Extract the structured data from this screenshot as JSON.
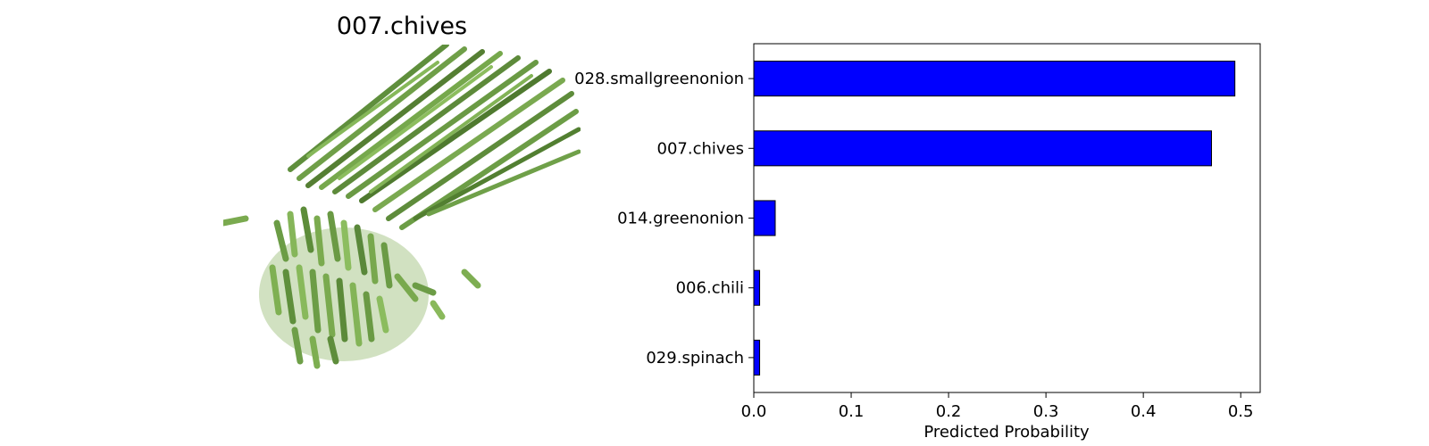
{
  "image_panel": {
    "title": "007.chives",
    "photo_icon": "chopped-chives-photo"
  },
  "chart_data": {
    "type": "bar",
    "orientation": "horizontal",
    "categories": [
      "028.smallgreenonion",
      "007.chives",
      "014.greenonion",
      "006.chili",
      "029.spinach"
    ],
    "values": [
      0.494,
      0.47,
      0.022,
      0.006,
      0.006
    ],
    "xlabel": "Predicted Probability",
    "ylabel": "",
    "xlim": [
      0.0,
      0.52
    ],
    "xticks": [
      "0.0",
      "0.1",
      "0.2",
      "0.3",
      "0.4",
      "0.5"
    ],
    "bar_color": "#0000ff",
    "edge_color": "#000000",
    "grid": false
  }
}
